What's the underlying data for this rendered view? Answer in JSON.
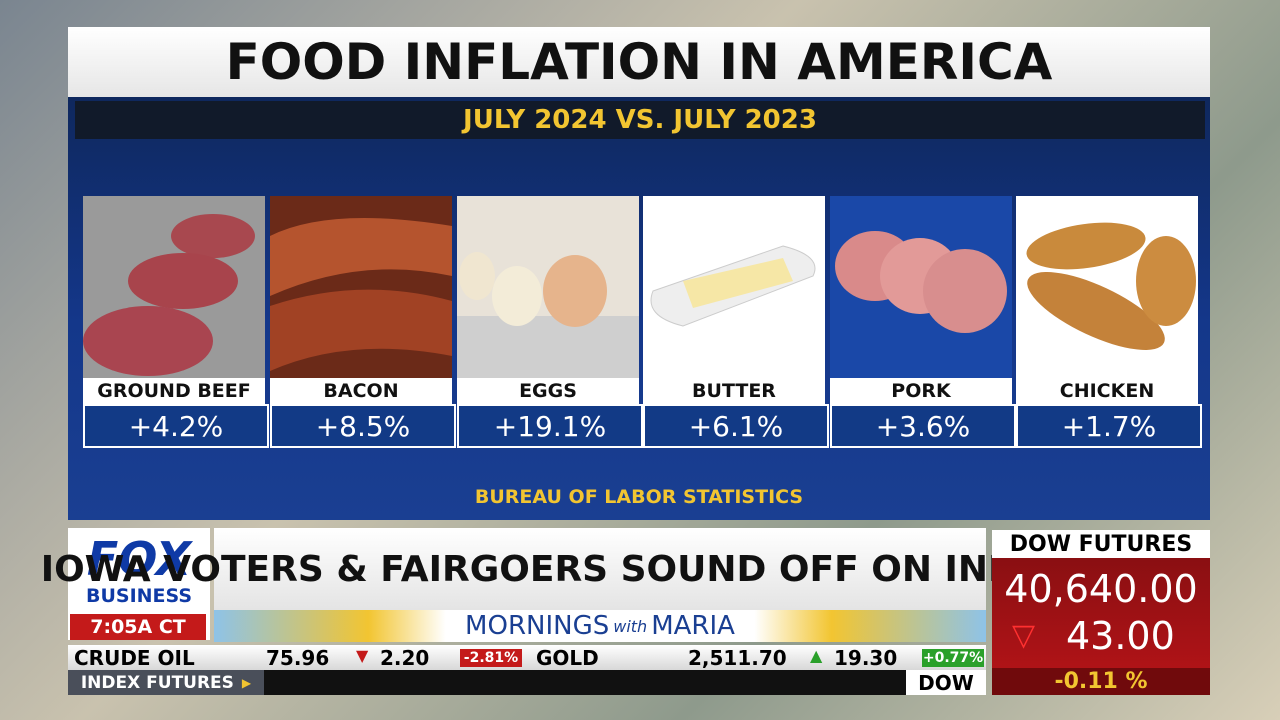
{
  "header": {
    "title": "FOOD INFLATION IN AMERICA",
    "subtitle": "JULY 2024 VS. JULY 2023"
  },
  "items": [
    {
      "label": "GROUND BEEF",
      "change": "+4.2%"
    },
    {
      "label": "BACON",
      "change": "+8.5%"
    },
    {
      "label": "EGGS",
      "change": "+19.1%"
    },
    {
      "label": "BUTTER",
      "change": "+6.1%"
    },
    {
      "label": "PORK",
      "change": "+3.6%"
    },
    {
      "label": "CHICKEN",
      "change": "+1.7%"
    }
  ],
  "source": "BUREAU OF LABOR STATISTICS",
  "logo": {
    "top": "FOX",
    "bottom": "BUSINESS",
    "time": "7:05A CT"
  },
  "headline": "IOWA VOTERS & FAIRGOERS SOUND OFF ON INFLATION",
  "show": {
    "first": "MORNINGS",
    "middle": "with",
    "last": "MARIA"
  },
  "ticker": [
    {
      "name": "CRUDE OIL",
      "price": "75.96",
      "change": "2.20",
      "percent": "-2.81%"
    },
    {
      "name": "GOLD",
      "price": "2,511.70",
      "change": "19.30",
      "percent": "+0.77%"
    }
  ],
  "index_label": "INDEX FUTURES",
  "index_name": "DOW",
  "dow": {
    "title": "DOW FUTURES",
    "value": "40,640.00",
    "change": "43.00",
    "percent": "-0.11 %"
  }
}
